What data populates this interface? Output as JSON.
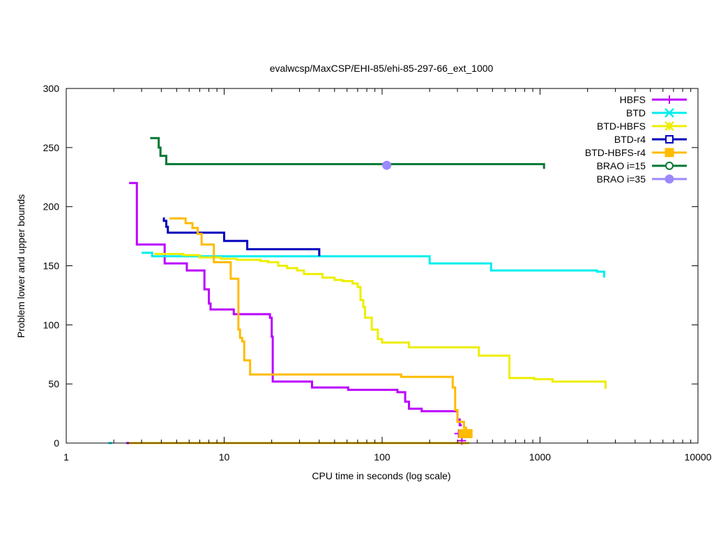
{
  "chart_data": {
    "type": "line",
    "title": "evalwcsp/MaxCSP/EHI-85/ehi-85-297-66_ext_1000",
    "xlabel": "CPU time in seconds (log scale)",
    "ylabel": "Problem lower and upper bounds",
    "x_scale": "log",
    "xlim": [
      1,
      10000
    ],
    "ylim": [
      0,
      300
    ],
    "x_ticks": [
      1,
      10,
      100,
      1000,
      10000
    ],
    "x_tick_labels": [
      "1",
      "10",
      "100",
      "1000",
      "10000"
    ],
    "y_ticks": [
      0,
      50,
      100,
      150,
      200,
      250,
      300
    ],
    "y_tick_labels": [
      "0",
      "50",
      "100",
      "150",
      "200",
      "250",
      "300"
    ],
    "grid": false,
    "legend_position": "top-right",
    "series": [
      {
        "name": "HBFS",
        "color": "#bb00ff",
        "marker": "plus",
        "upper": [
          [
            2.5,
            220
          ],
          [
            2.8,
            220
          ],
          [
            2.8,
            168
          ],
          [
            4.2,
            168
          ],
          [
            4.2,
            152
          ],
          [
            5.8,
            152
          ],
          [
            5.8,
            146
          ],
          [
            7.5,
            146
          ],
          [
            7.5,
            130
          ],
          [
            8.0,
            130
          ],
          [
            8.0,
            118
          ],
          [
            8.2,
            118
          ],
          [
            8.2,
            113
          ],
          [
            11.5,
            113
          ],
          [
            11.5,
            109
          ],
          [
            19.5,
            109
          ],
          [
            19.5,
            106
          ],
          [
            20.0,
            106
          ],
          [
            20.0,
            90
          ],
          [
            20.3,
            90
          ],
          [
            20.3,
            52
          ],
          [
            36,
            52
          ],
          [
            36,
            47
          ],
          [
            61,
            47
          ],
          [
            61,
            45
          ],
          [
            125,
            45
          ],
          [
            125,
            43
          ],
          [
            140,
            43
          ],
          [
            140,
            35
          ],
          [
            148,
            35
          ],
          [
            148,
            29
          ],
          [
            178,
            29
          ],
          [
            178,
            27
          ],
          [
            300,
            27
          ],
          [
            300,
            20
          ],
          [
            310,
            20
          ],
          [
            310,
            15
          ],
          [
            320,
            15
          ]
        ],
        "lower": [
          [
            2.4,
            0
          ],
          [
            3.0,
            0
          ]
        ],
        "markers": [
          [
            305,
            8
          ],
          [
            320,
            2
          ]
        ]
      },
      {
        "name": "BTD",
        "color": "#00eeee",
        "marker": "x",
        "upper": [
          [
            3.0,
            161
          ],
          [
            3.5,
            161
          ],
          [
            3.5,
            158
          ],
          [
            200,
            158
          ],
          [
            200,
            152
          ],
          [
            490,
            152
          ],
          [
            490,
            146
          ],
          [
            2300,
            146
          ],
          [
            2300,
            145
          ],
          [
            2550,
            145
          ],
          [
            2550,
            140
          ]
        ],
        "lower": [
          [
            1.85,
            0
          ],
          [
            1.95,
            0
          ]
        ],
        "markers": []
      },
      {
        "name": "BTD-HBFS",
        "color": "#eeee00",
        "marker": "star",
        "upper": [
          [
            3.6,
            160
          ],
          [
            5.5,
            160
          ],
          [
            5.5,
            159
          ],
          [
            7.0,
            159
          ],
          [
            7.0,
            157
          ],
          [
            9.5,
            157
          ],
          [
            9.5,
            156
          ],
          [
            12,
            156
          ],
          [
            12,
            155
          ],
          [
            17,
            155
          ],
          [
            17,
            154
          ],
          [
            19,
            154
          ],
          [
            19,
            153
          ],
          [
            22,
            153
          ],
          [
            22,
            150
          ],
          [
            25,
            150
          ],
          [
            25,
            148
          ],
          [
            29,
            148
          ],
          [
            29,
            146
          ],
          [
            32,
            146
          ],
          [
            32,
            143
          ],
          [
            42,
            143
          ],
          [
            42,
            140
          ],
          [
            50,
            140
          ],
          [
            50,
            138
          ],
          [
            56,
            138
          ],
          [
            56,
            137
          ],
          [
            65,
            137
          ],
          [
            65,
            135
          ],
          [
            70,
            135
          ],
          [
            70,
            132
          ],
          [
            73,
            132
          ],
          [
            73,
            121
          ],
          [
            76,
            121
          ],
          [
            76,
            115
          ],
          [
            78,
            115
          ],
          [
            78,
            106
          ],
          [
            86,
            106
          ],
          [
            86,
            96
          ],
          [
            94,
            96
          ],
          [
            94,
            88
          ],
          [
            100,
            88
          ],
          [
            100,
            85
          ],
          [
            148,
            85
          ],
          [
            148,
            81
          ],
          [
            410,
            81
          ],
          [
            410,
            74
          ],
          [
            640,
            74
          ],
          [
            640,
            55
          ],
          [
            920,
            55
          ],
          [
            920,
            54
          ],
          [
            1200,
            54
          ],
          [
            1200,
            52
          ],
          [
            2600,
            52
          ],
          [
            2600,
            46
          ]
        ],
        "lower": [
          [
            2.9,
            0
          ],
          [
            330,
            0
          ]
        ],
        "markers": []
      },
      {
        "name": "BTD-r4",
        "color": "#0000bb",
        "marker": "open-square",
        "upper": [
          [
            4.1,
            190
          ],
          [
            4.15,
            190
          ],
          [
            4.15,
            188
          ],
          [
            4.3,
            188
          ],
          [
            4.3,
            183
          ],
          [
            4.4,
            183
          ],
          [
            4.4,
            178
          ],
          [
            10,
            178
          ],
          [
            10,
            171
          ],
          [
            14,
            171
          ],
          [
            14,
            164
          ],
          [
            40,
            164
          ],
          [
            40,
            158
          ]
        ],
        "lower": [],
        "markers": []
      },
      {
        "name": "BTD-HBFS-r4",
        "color": "#ffbb00",
        "marker": "filled-square",
        "upper": [
          [
            4.5,
            190
          ],
          [
            5.7,
            190
          ],
          [
            5.7,
            186
          ],
          [
            6.3,
            186
          ],
          [
            6.3,
            182
          ],
          [
            6.8,
            182
          ],
          [
            6.8,
            177
          ],
          [
            7.2,
            177
          ],
          [
            7.2,
            168
          ],
          [
            8.6,
            168
          ],
          [
            8.6,
            153
          ],
          [
            11,
            153
          ],
          [
            11,
            139
          ],
          [
            12.3,
            139
          ],
          [
            12.3,
            96
          ],
          [
            12.6,
            96
          ],
          [
            12.6,
            89
          ],
          [
            13,
            89
          ],
          [
            13,
            86
          ],
          [
            13.4,
            86
          ],
          [
            13.4,
            70
          ],
          [
            14.6,
            70
          ],
          [
            14.6,
            58
          ],
          [
            132,
            58
          ],
          [
            132,
            56
          ],
          [
            280,
            56
          ],
          [
            280,
            47
          ],
          [
            290,
            47
          ],
          [
            290,
            28
          ],
          [
            300,
            28
          ],
          [
            300,
            18
          ],
          [
            330,
            18
          ],
          [
            330,
            13
          ],
          [
            340,
            13
          ],
          [
            340,
            8
          ],
          [
            355,
            8
          ]
        ],
        "lower": [
          [
            2.5,
            0
          ],
          [
            355,
            0
          ]
        ],
        "markers": [
          [
            325,
            8
          ],
          [
            350,
            8
          ]
        ]
      },
      {
        "name": "BRAO i=15",
        "color": "#007733",
        "marker": "open-circle",
        "upper": [
          [
            3.4,
            258
          ],
          [
            3.85,
            258
          ],
          [
            3.85,
            250
          ],
          [
            3.95,
            250
          ],
          [
            3.95,
            243
          ],
          [
            4.3,
            243
          ],
          [
            4.3,
            236
          ],
          [
            1060,
            236
          ],
          [
            1060,
            232
          ]
        ],
        "lower": [],
        "markers": []
      },
      {
        "name": "BRAO i=35",
        "color": "#9c88ff",
        "marker": "filled-circle",
        "upper": [],
        "lower": [],
        "markers": [
          [
            107,
            235
          ]
        ]
      }
    ]
  }
}
